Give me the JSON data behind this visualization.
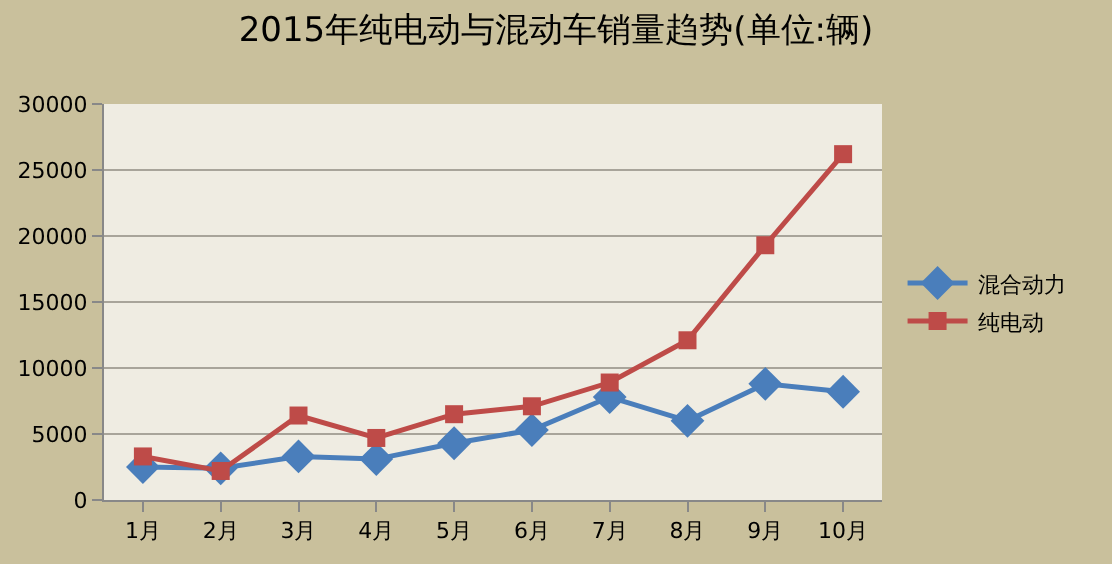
{
  "chart_data": {
    "type": "line",
    "title": "2015年纯电动与混动车销量趋势(单位:辆)",
    "categories": [
      "1月",
      "2月",
      "3月",
      "4月",
      "5月",
      "6月",
      "7月",
      "8月",
      "9月",
      "10月"
    ],
    "series": [
      {
        "name": "混合动力",
        "color": "#4a7ebb",
        "marker": "diamond",
        "values": [
          2500,
          2400,
          3300,
          3100,
          4300,
          5300,
          7800,
          6000,
          8800,
          8200
        ]
      },
      {
        "name": "纯电动",
        "color": "#be4b48",
        "marker": "square",
        "values": [
          3300,
          2200,
          6400,
          4700,
          6500,
          7100,
          8900,
          12100,
          19300,
          26200
        ]
      }
    ],
    "ylim": [
      0,
      30000
    ],
    "yticks": [
      0,
      5000,
      10000,
      15000,
      20000,
      25000,
      30000
    ],
    "grid": "y",
    "legend": "right",
    "line_style": "solid"
  }
}
